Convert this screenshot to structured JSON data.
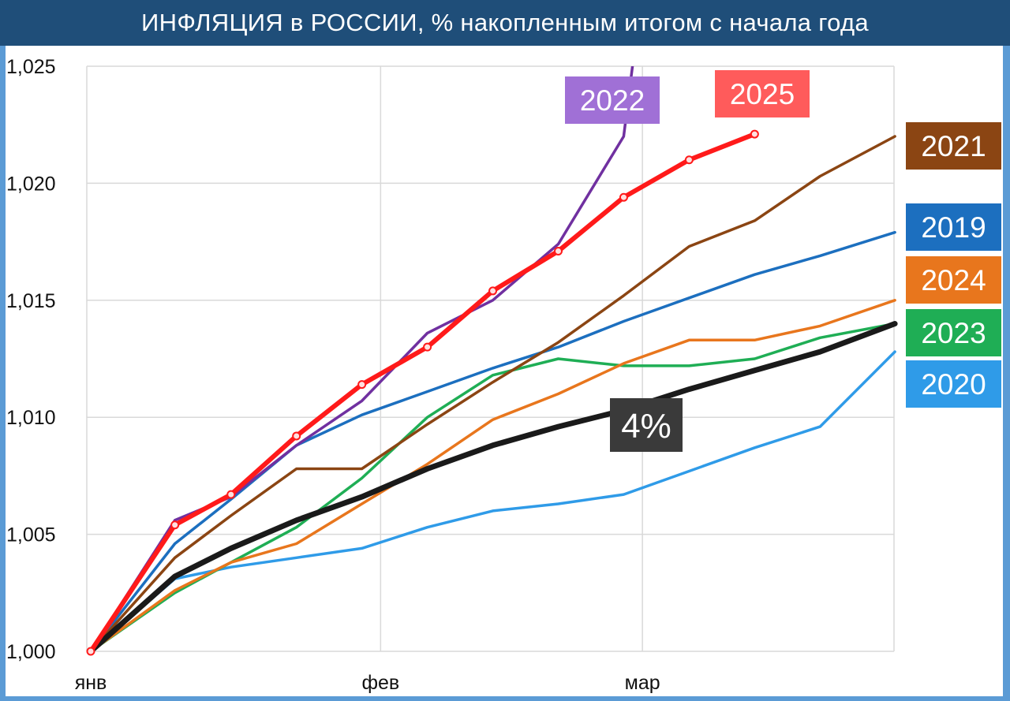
{
  "title": "ИНФЛЯЦИЯ в РОССИИ, % накопленным итогом с начала года",
  "colors": {
    "title_bg": "#1f4e79",
    "frame": "#5b9bd5",
    "grid": "#d9d9d9"
  },
  "chart_data": {
    "type": "line",
    "title": "ИНФЛЯЦИЯ в РОССИИ, % накопленным итогом с начала года",
    "xlabel": "",
    "ylabel": "",
    "ylim": [
      1.0,
      1.025
    ],
    "yticks": [
      "1,000",
      "1,005",
      "1,010",
      "1,015",
      "1,020",
      "1,025"
    ],
    "xticks": [
      {
        "label": "янв",
        "x": 0
      },
      {
        "label": "фев",
        "x": 31
      },
      {
        "label": "мар",
        "x": 59
      }
    ],
    "grid": true,
    "series": [
      {
        "name": "2020",
        "color": "#2f9be8",
        "width": 3.5,
        "markers": false,
        "points": [
          [
            0,
            1.0
          ],
          [
            9,
            1.0031
          ],
          [
            15,
            1.0036
          ],
          [
            22,
            1.004
          ],
          [
            29,
            1.0044
          ],
          [
            36,
            1.0053
          ],
          [
            43,
            1.006
          ],
          [
            50,
            1.0063
          ],
          [
            57,
            1.0067
          ],
          [
            64,
            1.0077
          ],
          [
            71,
            1.0087
          ],
          [
            78,
            1.0096
          ],
          [
            86,
            1.0128
          ]
        ]
      },
      {
        "name": "2023",
        "color": "#1fae55",
        "width": 3.5,
        "markers": false,
        "points": [
          [
            0,
            1.0
          ],
          [
            9,
            1.0025
          ],
          [
            15,
            1.0038
          ],
          [
            22,
            1.0053
          ],
          [
            29,
            1.0074
          ],
          [
            36,
            1.01
          ],
          [
            43,
            1.0118
          ],
          [
            50,
            1.0125
          ],
          [
            57,
            1.0122
          ],
          [
            64,
            1.0122
          ],
          [
            71,
            1.0125
          ],
          [
            78,
            1.0134
          ],
          [
            86,
            1.014
          ]
        ]
      },
      {
        "name": "2024",
        "color": "#e8761d",
        "width": 3.5,
        "markers": false,
        "points": [
          [
            0,
            1.0
          ],
          [
            9,
            1.0026
          ],
          [
            15,
            1.0038
          ],
          [
            22,
            1.0046
          ],
          [
            29,
            1.0063
          ],
          [
            36,
            1.008
          ],
          [
            43,
            1.0099
          ],
          [
            50,
            1.011
          ],
          [
            57,
            1.0123
          ],
          [
            64,
            1.0133
          ],
          [
            71,
            1.0133
          ],
          [
            78,
            1.0139
          ],
          [
            86,
            1.015
          ]
        ]
      },
      {
        "name": "2019",
        "color": "#1c6fbf",
        "width": 3.5,
        "markers": false,
        "points": [
          [
            0,
            1.0
          ],
          [
            9,
            1.0046
          ],
          [
            15,
            1.0065
          ],
          [
            22,
            1.0088
          ],
          [
            29,
            1.0101
          ],
          [
            36,
            1.0111
          ],
          [
            43,
            1.0121
          ],
          [
            50,
            1.013
          ],
          [
            57,
            1.0141
          ],
          [
            64,
            1.0151
          ],
          [
            71,
            1.0161
          ],
          [
            78,
            1.0169
          ],
          [
            86,
            1.0179
          ]
        ]
      },
      {
        "name": "2021",
        "color": "#8b4513",
        "width": 3.5,
        "markers": false,
        "points": [
          [
            0,
            1.0
          ],
          [
            9,
            1.004
          ],
          [
            15,
            1.0058
          ],
          [
            22,
            1.0078
          ],
          [
            29,
            1.0078
          ],
          [
            36,
            1.0097
          ],
          [
            43,
            1.0115
          ],
          [
            50,
            1.0132
          ],
          [
            57,
            1.0152
          ],
          [
            64,
            1.0173
          ],
          [
            71,
            1.0184
          ],
          [
            78,
            1.0203
          ],
          [
            86,
            1.022
          ]
        ]
      },
      {
        "name": "2022",
        "color": "#7030a0",
        "width": 3.5,
        "markers": false,
        "points": [
          [
            0,
            1.0
          ],
          [
            9,
            1.0056
          ],
          [
            15,
            1.0066
          ],
          [
            22,
            1.0088
          ],
          [
            29,
            1.0107
          ],
          [
            36,
            1.0136
          ],
          [
            43,
            1.015
          ],
          [
            50,
            1.0174
          ],
          [
            57,
            1.022
          ],
          [
            58,
            1.0252
          ]
        ]
      },
      {
        "name": "4%",
        "color": "#1a1a1a",
        "width": 7,
        "markers": false,
        "points": [
          [
            0,
            1.0
          ],
          [
            9,
            1.0032
          ],
          [
            15,
            1.0044
          ],
          [
            22,
            1.0056
          ],
          [
            29,
            1.0066
          ],
          [
            36,
            1.0078
          ],
          [
            43,
            1.0088
          ],
          [
            50,
            1.0096
          ],
          [
            57,
            1.0103
          ],
          [
            64,
            1.0112
          ],
          [
            71,
            1.012
          ],
          [
            78,
            1.0128
          ],
          [
            86,
            1.014
          ]
        ]
      },
      {
        "name": "2025",
        "color": "#ff1a1a",
        "width": 6,
        "markers": true,
        "points": [
          [
            0,
            1.0
          ],
          [
            9,
            1.0054
          ],
          [
            15,
            1.0067
          ],
          [
            22,
            1.0092
          ],
          [
            29,
            1.0114
          ],
          [
            36,
            1.013
          ],
          [
            43,
            1.0154
          ],
          [
            50,
            1.0171
          ],
          [
            57,
            1.0194
          ],
          [
            64,
            1.021
          ],
          [
            71,
            1.0221
          ]
        ]
      }
    ],
    "labels": [
      {
        "text": "2022",
        "bg": "#a070d6",
        "kind": "legend"
      },
      {
        "text": "2025",
        "bg": "#ff5b5b",
        "kind": "legend"
      },
      {
        "text": "2021",
        "bg": "#8b4513",
        "kind": "legend"
      },
      {
        "text": "2019",
        "bg": "#1c6fbf",
        "kind": "legend"
      },
      {
        "text": "2024",
        "bg": "#e8761d",
        "kind": "legend"
      },
      {
        "text": "2023",
        "bg": "#1fae55",
        "kind": "legend"
      },
      {
        "text": "2020",
        "bg": "#2f9be8",
        "kind": "legend"
      },
      {
        "text": "4%",
        "bg": "#3a3a3a",
        "kind": "target"
      }
    ]
  }
}
